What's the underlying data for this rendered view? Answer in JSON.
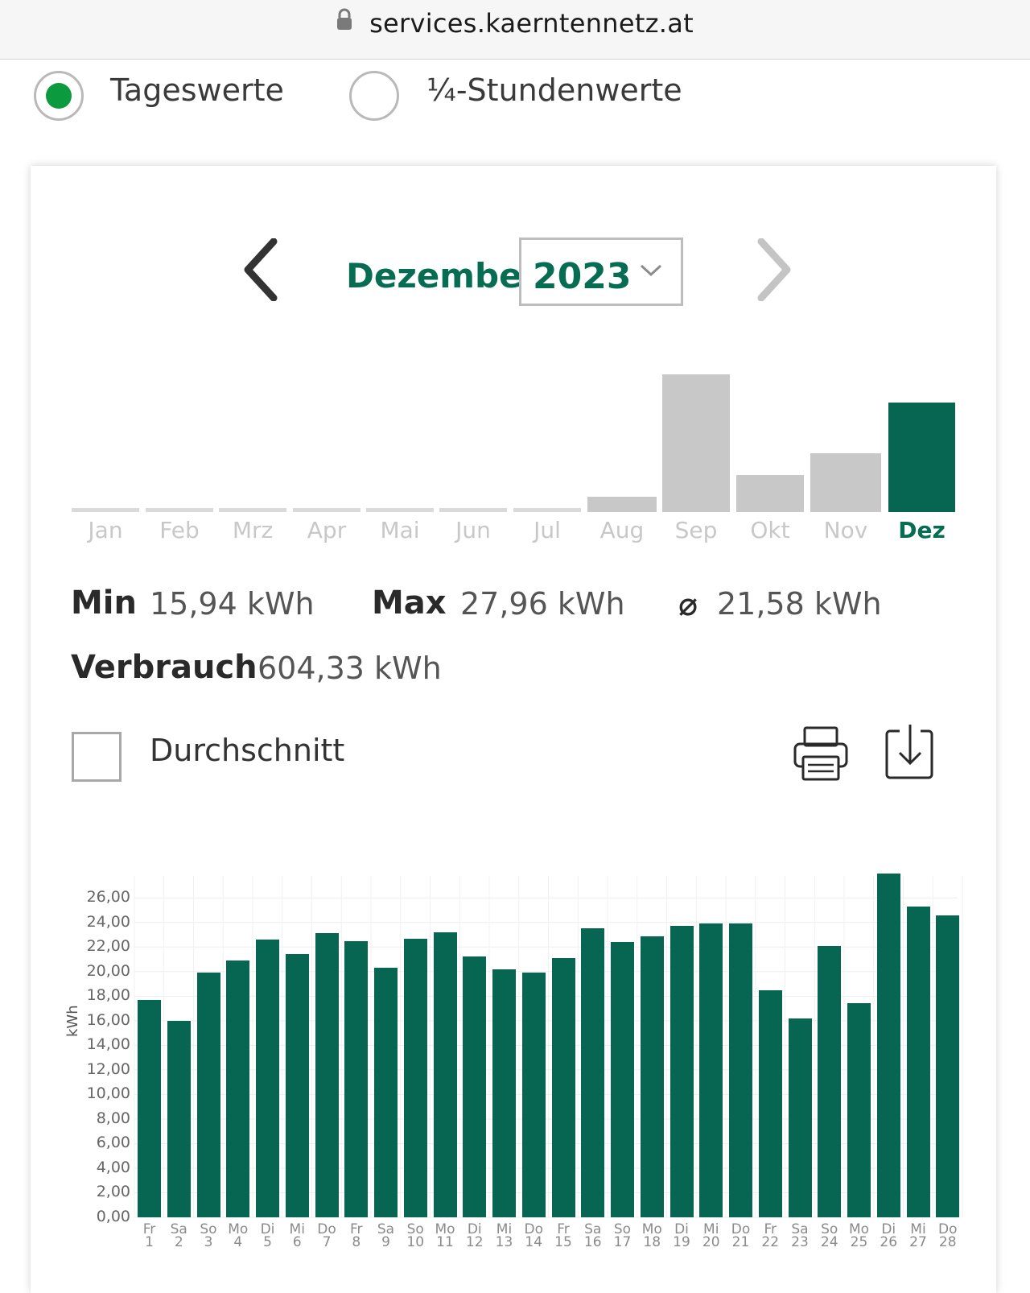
{
  "browser": {
    "url": "services.kaerntennetz.at"
  },
  "view_toggle": {
    "options": [
      "Tageswerte",
      "¼-Stundenwerte"
    ],
    "selected": "Tageswerte"
  },
  "period": {
    "month": "Dezember",
    "year": "2023"
  },
  "stats": {
    "min_label": "Min",
    "min_value": "15,94 kWh",
    "max_label": "Max",
    "max_value": "27,96 kWh",
    "avg_symbol": "⌀",
    "avg_value": "21,58 kWh",
    "total_label": "Verbrauch",
    "total_value": "604,33 kWh"
  },
  "average_toggle": {
    "label": "Durchschnitt",
    "checked": false
  },
  "icons": {
    "print": "printer-icon",
    "download": "download-icon",
    "prev": "chevron-left-icon",
    "next": "chevron-right-icon",
    "lock": "lock-icon"
  },
  "colors": {
    "brand_green": "#066d52",
    "radio_green": "#0c9a3e",
    "inactive_bar": "#c8c8c8"
  },
  "chart_data": [
    {
      "type": "bar",
      "categories": [
        "Jan",
        "Feb",
        "Mrz",
        "Apr",
        "Mai",
        "Jun",
        "Jul",
        "Aug",
        "Sep",
        "Okt",
        "Nov",
        "Dez"
      ],
      "values": [
        0,
        0,
        0,
        0,
        0,
        0,
        0,
        7,
        63,
        17,
        27,
        50
      ],
      "highlight": "Dez",
      "note": "relative monthly consumption, no axis shown"
    },
    {
      "type": "bar",
      "ylabel": "kWh",
      "ylim": [
        0,
        27.96
      ],
      "yticks": [
        "0,00",
        "2,00",
        "4,00",
        "6,00",
        "8,00",
        "10,00",
        "12,00",
        "14,00",
        "16,00",
        "18,00",
        "20,00",
        "22,00",
        "24,00",
        "26,00"
      ],
      "days": [
        {
          "wd": "Fr",
          "d": "1"
        },
        {
          "wd": "Sa",
          "d": "2"
        },
        {
          "wd": "So",
          "d": "3"
        },
        {
          "wd": "Mo",
          "d": "4"
        },
        {
          "wd": "Di",
          "d": "5"
        },
        {
          "wd": "Mi",
          "d": "6"
        },
        {
          "wd": "Do",
          "d": "7"
        },
        {
          "wd": "Fr",
          "d": "8"
        },
        {
          "wd": "Sa",
          "d": "9"
        },
        {
          "wd": "So",
          "d": "10"
        },
        {
          "wd": "Mo",
          "d": "11"
        },
        {
          "wd": "Di",
          "d": "12"
        },
        {
          "wd": "Mi",
          "d": "13"
        },
        {
          "wd": "Do",
          "d": "14"
        },
        {
          "wd": "Fr",
          "d": "15"
        },
        {
          "wd": "Sa",
          "d": "16"
        },
        {
          "wd": "So",
          "d": "17"
        },
        {
          "wd": "Mo",
          "d": "18"
        },
        {
          "wd": "Di",
          "d": "19"
        },
        {
          "wd": "Mi",
          "d": "20"
        },
        {
          "wd": "Do",
          "d": "21"
        },
        {
          "wd": "Fr",
          "d": "22"
        },
        {
          "wd": "Sa",
          "d": "23"
        },
        {
          "wd": "So",
          "d": "24"
        },
        {
          "wd": "Mo",
          "d": "25"
        },
        {
          "wd": "Di",
          "d": "26"
        },
        {
          "wd": "Mi",
          "d": "27"
        },
        {
          "wd": "Do",
          "d": "28"
        }
      ],
      "values": [
        17.7,
        16.0,
        19.9,
        20.9,
        22.6,
        21.4,
        23.1,
        22.5,
        20.3,
        22.7,
        23.2,
        21.2,
        20.2,
        19.9,
        21.1,
        23.5,
        22.4,
        22.9,
        23.7,
        23.9,
        23.9,
        18.5,
        16.2,
        22.1,
        17.4,
        27.96,
        25.3,
        24.6
      ]
    }
  ]
}
